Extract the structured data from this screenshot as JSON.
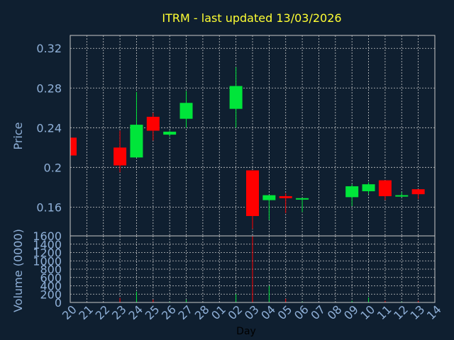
{
  "chart_data": {
    "type": "candlestick",
    "title": "ITRM - last updated 13/03/2026",
    "xlabel": "Day",
    "price_panel": {
      "ylabel": "Price",
      "yticks": [
        "0.32",
        "0.28",
        "0.24",
        "0.2",
        "0.16"
      ],
      "ytick_values": [
        0.32,
        0.28,
        0.24,
        0.2,
        0.16
      ],
      "ylim": [
        0.131,
        0.333
      ],
      "grid": true
    },
    "volume_panel": {
      "ylabel": "Volume (0000)",
      "yticks": [
        "1600",
        "1400",
        "1200",
        "1000",
        "800",
        "600",
        "400",
        "200",
        "0"
      ],
      "ytick_values": [
        1600,
        1400,
        1200,
        1000,
        800,
        600,
        400,
        200,
        0
      ],
      "ylim": [
        0,
        1600
      ],
      "grid": true
    },
    "x_ticks": [
      "20",
      "21",
      "22",
      "23",
      "24",
      "25",
      "26",
      "27",
      "28",
      "01",
      "02",
      "03",
      "04",
      "05",
      "06",
      "07",
      "08",
      "09",
      "10",
      "11",
      "12",
      "13",
      "14"
    ],
    "candles": [
      {
        "day": "20",
        "open": 0.23,
        "close": 0.212,
        "high": 0.23,
        "low": 0.212,
        "volume": 0
      },
      {
        "day": "23",
        "open": 0.22,
        "close": 0.202,
        "high": 0.237,
        "low": 0.195,
        "volume": 110
      },
      {
        "day": "24",
        "open": 0.21,
        "close": 0.243,
        "high": 0.276,
        "low": 0.21,
        "volume": 260
      },
      {
        "day": "25",
        "open": 0.251,
        "close": 0.237,
        "high": 0.255,
        "low": 0.227,
        "volume": 70
      },
      {
        "day": "26",
        "open": 0.233,
        "close": 0.236,
        "high": 0.237,
        "low": 0.231,
        "volume": 20
      },
      {
        "day": "27",
        "open": 0.249,
        "close": 0.265,
        "high": 0.277,
        "low": 0.24,
        "volume": 70
      },
      {
        "day": "02",
        "open": 0.259,
        "close": 0.282,
        "high": 0.301,
        "low": 0.24,
        "volume": 200
      },
      {
        "day": "03",
        "open": 0.197,
        "close": 0.151,
        "high": 0.197,
        "low": 0.138,
        "volume": 1600
      },
      {
        "day": "04",
        "open": 0.167,
        "close": 0.172,
        "high": 0.172,
        "low": 0.147,
        "volume": 400
      },
      {
        "day": "05",
        "open": 0.171,
        "close": 0.169,
        "high": 0.174,
        "low": 0.154,
        "volume": 90
      },
      {
        "day": "06",
        "open": 0.168,
        "close": 0.169,
        "high": 0.169,
        "low": 0.155,
        "volume": 20
      },
      {
        "day": "09",
        "open": 0.17,
        "close": 0.181,
        "high": 0.183,
        "low": 0.161,
        "volume": 40
      },
      {
        "day": "10",
        "open": 0.176,
        "close": 0.183,
        "high": 0.185,
        "low": 0.173,
        "volume": 120
      },
      {
        "day": "11",
        "open": 0.187,
        "close": 0.171,
        "high": 0.187,
        "low": 0.167,
        "volume": 40
      },
      {
        "day": "12",
        "open": 0.171,
        "close": 0.172,
        "high": 0.175,
        "low": 0.17,
        "volume": 20
      },
      {
        "day": "13",
        "open": 0.178,
        "close": 0.173,
        "high": 0.178,
        "low": 0.168,
        "volume": 40
      }
    ],
    "colors": {
      "background": "#0f1f30",
      "up": "#00e53a",
      "down": "#ff0000",
      "grid": "#c8c8c8",
      "axis_text": "#8fb0d8",
      "title": "#ffff33",
      "xlabel": "#000000"
    }
  }
}
